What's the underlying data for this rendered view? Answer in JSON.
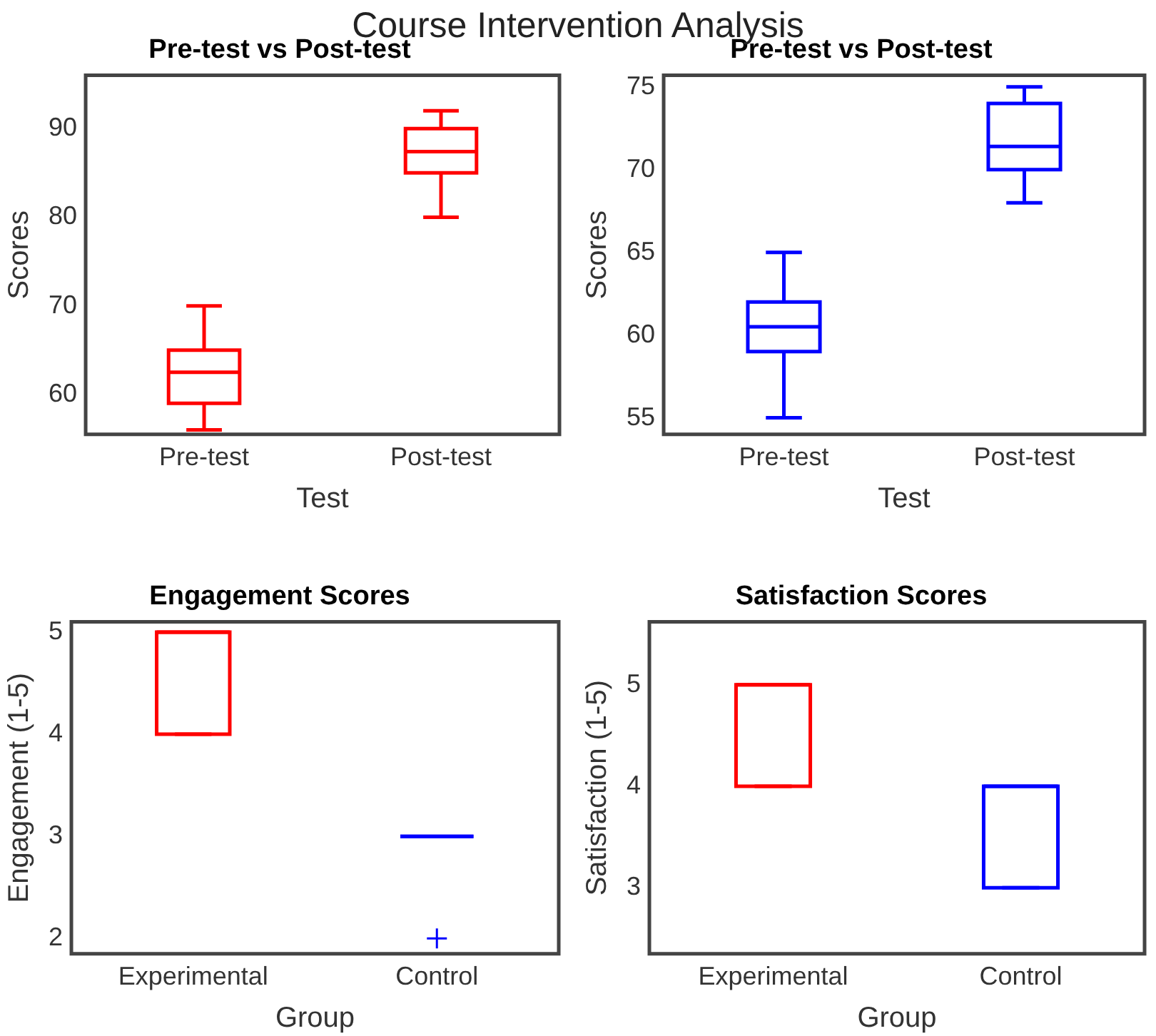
{
  "chart_data": [
    {
      "type": "box",
      "title": "Pre-test vs Post-test",
      "xlabel": "Test",
      "ylabel": "Scores",
      "annotations": [
        "Course Intervention Analysis"
      ],
      "categories": [
        "Pre-test",
        "Post-test"
      ],
      "colors": [
        "#ff0000",
        "#ff0000"
      ],
      "boxes": [
        {
          "low": 56,
          "q1": 59,
          "median": 62.5,
          "q3": 65,
          "high": 70
        },
        {
          "low": 80,
          "q1": 85,
          "median": 87.4,
          "q3": 90,
          "high": 92
        }
      ],
      "ylim": [
        55.5,
        96
      ],
      "yticks": [
        60,
        70,
        80,
        90
      ],
      "grid": false
    },
    {
      "type": "box",
      "title": "Pre-test vs Post-test",
      "xlabel": "Test",
      "ylabel": "Scores",
      "categories": [
        "Pre-test",
        "Post-test"
      ],
      "colors": [
        "#0000ff",
        "#0000ff"
      ],
      "boxes": [
        {
          "low": 55,
          "q1": 59,
          "median": 60.5,
          "q3": 62,
          "high": 65
        },
        {
          "low": 68,
          "q1": 70,
          "median": 71.4,
          "q3": 74,
          "high": 75
        }
      ],
      "ylim": [
        54,
        75.7
      ],
      "yticks": [
        55,
        60,
        65,
        70,
        75
      ],
      "grid": false
    },
    {
      "type": "box",
      "title": "Engagement Scores",
      "xlabel": "Group",
      "ylabel": "Engagement (1-5)",
      "categories": [
        "Experimental",
        "Control"
      ],
      "colors": [
        "#ff0000",
        "#0000ff"
      ],
      "boxes": [
        {
          "low": 4,
          "q1": 4,
          "median": 5,
          "q3": 5,
          "high": 5
        },
        {
          "low": 3,
          "q1": 3,
          "median": 3,
          "q3": 3,
          "high": 3,
          "outliers": [
            2
          ]
        }
      ],
      "ylim": [
        1.85,
        5.1
      ],
      "yticks": [
        2,
        3,
        4,
        5
      ],
      "grid": false
    },
    {
      "type": "box",
      "title": "Satisfaction Scores",
      "xlabel": "Group",
      "ylabel": "Satisfaction (1-5)",
      "categories": [
        "Experimental",
        "Control"
      ],
      "colors": [
        "#ff0000",
        "#0000ff"
      ],
      "boxes": [
        {
          "low": 4,
          "q1": 4,
          "median": 5,
          "q3": 5,
          "high": 5
        },
        {
          "low": 3,
          "q1": 3,
          "median": 4,
          "q3": 4,
          "high": 4
        }
      ],
      "ylim": [
        2.35,
        5.62
      ],
      "yticks": [
        3,
        4,
        5
      ],
      "grid": false
    }
  ]
}
